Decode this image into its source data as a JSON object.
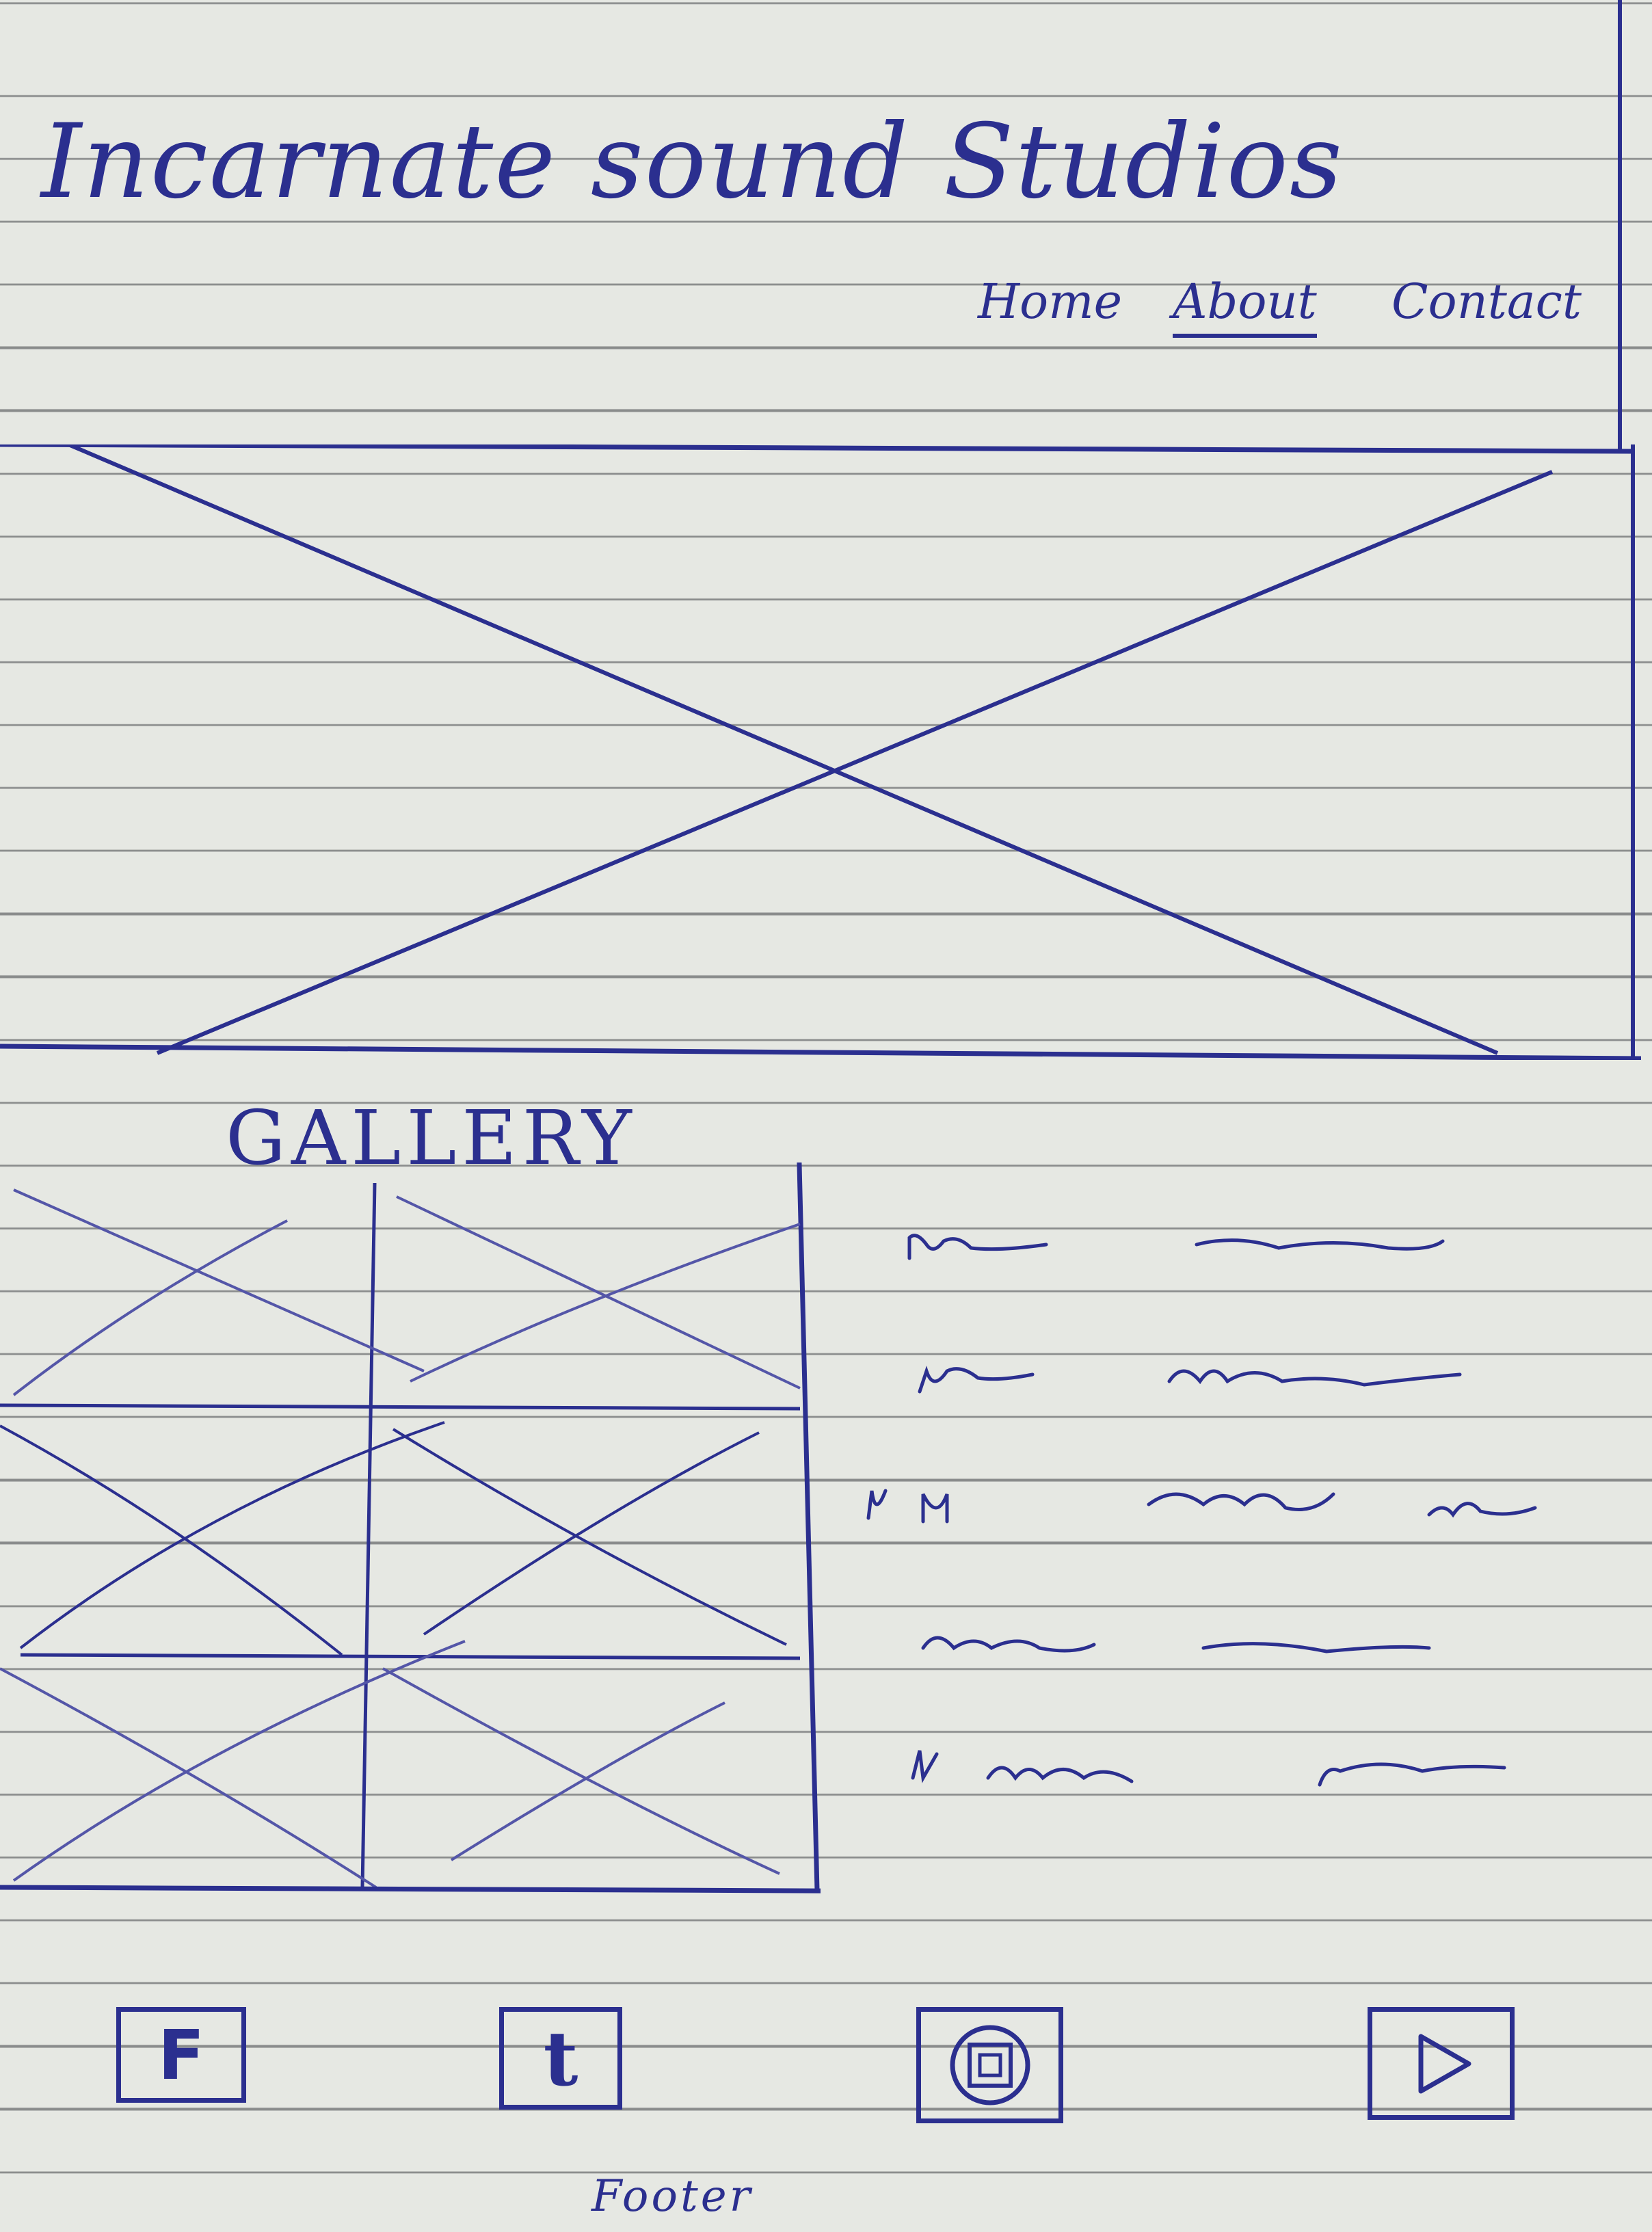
{
  "header": {
    "title": "Incarnate sound Studios",
    "nav": [
      {
        "label": "Home",
        "active": false
      },
      {
        "label": "About",
        "active": true
      },
      {
        "label": "Contact",
        "active": false
      }
    ]
  },
  "gallery": {
    "title": "GALLERY",
    "rows": 3,
    "columns": 2
  },
  "text_block": {
    "line_count": 5
  },
  "footer": {
    "social_icons": [
      {
        "icon": "facebook-icon",
        "glyph": "F"
      },
      {
        "icon": "twitter-icon",
        "glyph": "t"
      },
      {
        "icon": "instagram-icon",
        "glyph": ""
      },
      {
        "icon": "youtube-icon",
        "glyph": ""
      }
    ],
    "label": "Footer"
  },
  "colors": {
    "ink": "#2b2f8f",
    "paper": "#e6e8e3",
    "rule": "#8a8c8c"
  }
}
